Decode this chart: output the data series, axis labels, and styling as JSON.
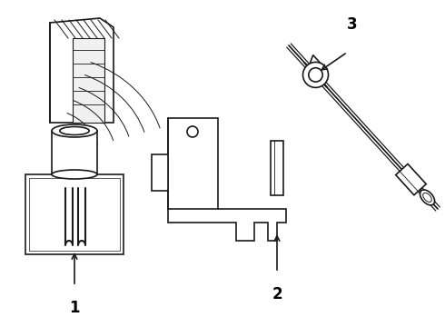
{
  "background_color": "#ffffff",
  "line_color": "#1a1a1a",
  "label_color": "#000000",
  "label_fontsize": 12,
  "label_fontweight": "bold",
  "figsize": [
    4.9,
    3.6
  ],
  "dpi": 100
}
